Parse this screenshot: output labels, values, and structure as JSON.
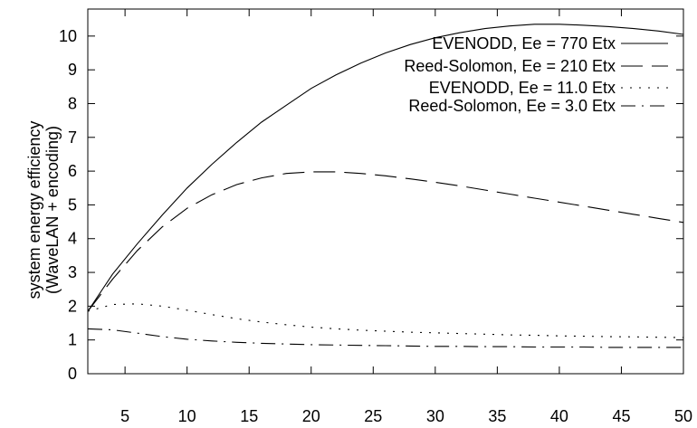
{
  "chart_data": {
    "type": "line",
    "title": "",
    "xlabel": "",
    "ylabel_lines": [
      "system energy efficiency",
      "(WaveLAN + encoding)"
    ],
    "xlim": [
      2,
      50
    ],
    "ylim": [
      0,
      10.8
    ],
    "x_ticks": [
      5,
      10,
      15,
      20,
      25,
      30,
      35,
      40,
      45,
      50
    ],
    "y_ticks": [
      0,
      1,
      2,
      3,
      4,
      5,
      6,
      7,
      8,
      9,
      10
    ],
    "grid": false,
    "legend_position": "top-right",
    "series": [
      {
        "name": "EVENODD, Ee = 770 Etx",
        "dash": "solid",
        "x": [
          2,
          4,
          6,
          8,
          10,
          12,
          14,
          16,
          18,
          20,
          22,
          24,
          26,
          28,
          30,
          32,
          34,
          36,
          38,
          40,
          42,
          44,
          46,
          48,
          50
        ],
        "y": [
          1.85,
          2.95,
          3.85,
          4.7,
          5.5,
          6.2,
          6.85,
          7.45,
          7.95,
          8.45,
          8.85,
          9.2,
          9.5,
          9.75,
          9.95,
          10.1,
          10.22,
          10.3,
          10.35,
          10.35,
          10.32,
          10.28,
          10.22,
          10.15,
          10.05
        ]
      },
      {
        "name": "Reed-Solomon, Ee = 210 Etx",
        "dash": "long-dash",
        "x": [
          2,
          4,
          6,
          8,
          10,
          12,
          14,
          16,
          18,
          20,
          22,
          24,
          26,
          28,
          30,
          32,
          34,
          36,
          38,
          40,
          42,
          44,
          46,
          48,
          50
        ],
        "y": [
          1.85,
          2.8,
          3.65,
          4.35,
          4.9,
          5.3,
          5.6,
          5.8,
          5.93,
          5.98,
          5.98,
          5.93,
          5.86,
          5.77,
          5.67,
          5.56,
          5.44,
          5.32,
          5.2,
          5.08,
          4.96,
          4.84,
          4.72,
          4.6,
          4.48
        ]
      },
      {
        "name": "EVENODD, Ee = 11.0 Etx",
        "dash": "dotted",
        "x": [
          2,
          4,
          6,
          8,
          10,
          12,
          14,
          16,
          18,
          20,
          22,
          24,
          26,
          28,
          30,
          32,
          34,
          36,
          38,
          40,
          42,
          44,
          46,
          48,
          50
        ],
        "y": [
          1.85,
          2.05,
          2.07,
          2.0,
          1.88,
          1.75,
          1.63,
          1.53,
          1.45,
          1.38,
          1.33,
          1.29,
          1.26,
          1.23,
          1.21,
          1.19,
          1.17,
          1.15,
          1.14,
          1.12,
          1.11,
          1.1,
          1.09,
          1.08,
          1.07
        ]
      },
      {
        "name": "Reed-Solomon, Ee = 3.0 Etx",
        "dash": "dash-dot",
        "x": [
          2,
          4,
          6,
          8,
          10,
          12,
          14,
          16,
          18,
          20,
          22,
          24,
          26,
          28,
          30,
          32,
          34,
          36,
          38,
          40,
          42,
          44,
          46,
          48,
          50
        ],
        "y": [
          1.33,
          1.3,
          1.2,
          1.1,
          1.02,
          0.97,
          0.93,
          0.9,
          0.88,
          0.86,
          0.85,
          0.84,
          0.83,
          0.82,
          0.81,
          0.81,
          0.8,
          0.8,
          0.79,
          0.79,
          0.79,
          0.78,
          0.78,
          0.78,
          0.78
        ]
      }
    ]
  }
}
